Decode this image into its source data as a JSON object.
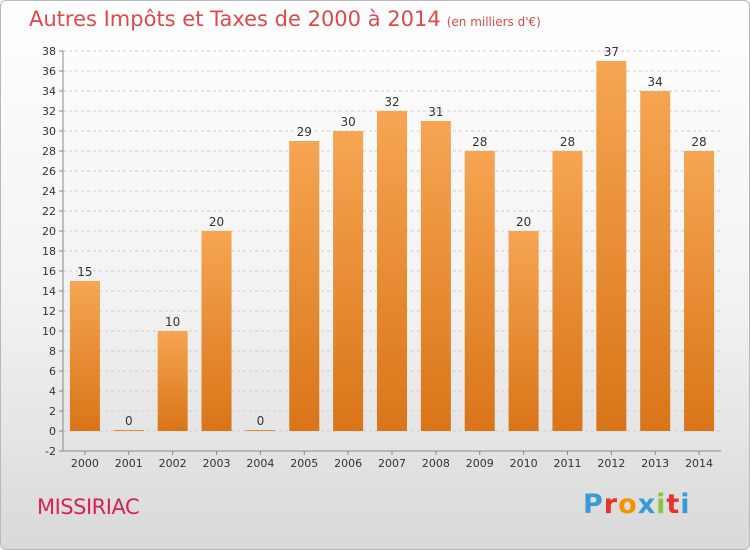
{
  "header": {
    "title": "Autres Impôts et Taxes de 2000 à 2014",
    "unit": "(en milliers d'€)"
  },
  "footer": {
    "place": "MISSIRIAC",
    "logo": [
      "P",
      "r",
      "o",
      "x",
      "i",
      "t",
      "i"
    ]
  },
  "colors": {
    "bar_light": "#f6a552",
    "bar_dark": "#d97518",
    "title": "#e2474a",
    "place": "#d8234f",
    "logo": [
      "#3a9ad9",
      "#e6312d",
      "#f29400",
      "#3a9ad9",
      "#8cc63e",
      "#e6312d",
      "#3a9ad9"
    ]
  },
  "chart_data": {
    "type": "bar",
    "categories": [
      "2000",
      "2001",
      "2002",
      "2003",
      "2004",
      "2005",
      "2006",
      "2007",
      "2008",
      "2009",
      "2010",
      "2011",
      "2012",
      "2013",
      "2014"
    ],
    "values": [
      15,
      0,
      10,
      20,
      0,
      29,
      30,
      32,
      31,
      28,
      20,
      28,
      37,
      34,
      28
    ],
    "ylim": [
      -2,
      38
    ],
    "yticks": [
      -2,
      0,
      2,
      4,
      6,
      8,
      10,
      12,
      14,
      16,
      18,
      20,
      22,
      24,
      26,
      28,
      30,
      32,
      34,
      36,
      38
    ],
    "grid": "horizontal dashed",
    "legend": "none"
  }
}
